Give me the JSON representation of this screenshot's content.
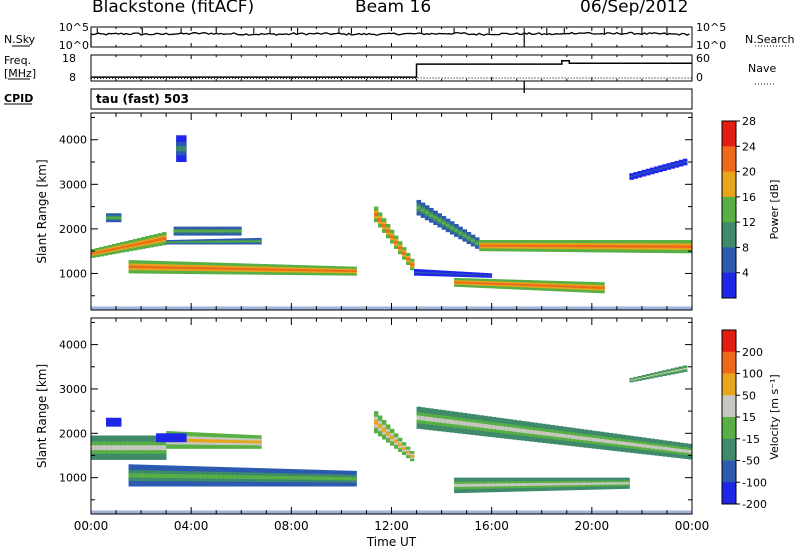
{
  "header": {
    "station": "Blackstone (fitACF)",
    "beam": "Beam 16",
    "date": "06/Sep/2012"
  },
  "chart_data": [
    {
      "type": "line",
      "panel": "noise",
      "left_label": "N.Sky",
      "right_label": "N.Search",
      "left_ticks": [
        "10^5",
        "10^0"
      ],
      "right_ticks": [
        "10^5",
        "10^0"
      ],
      "x": [
        0,
        1,
        2,
        3,
        4,
        5,
        6,
        7,
        8,
        9,
        10,
        11,
        12,
        13,
        14,
        15,
        16,
        17,
        18,
        19,
        20,
        21,
        22,
        23,
        24
      ],
      "series": [
        {
          "name": "N.Sky",
          "values": [
            3.2,
            3.3,
            3.2,
            3.3,
            3.4,
            3.3,
            3.2,
            3.2,
            3.3,
            3.3,
            3.2,
            3.2,
            3.3,
            3.3,
            3.4,
            3.2,
            3.3,
            3.3,
            3.2,
            3.5,
            3.3,
            3.4,
            3.3,
            3.2,
            3.3
          ]
        }
      ]
    },
    {
      "type": "line",
      "panel": "frequency",
      "left_label": "Freq. [MHz]",
      "right_label": "Nave",
      "left_ticks": [
        "18",
        "8"
      ],
      "right_ticks": [
        "60",
        "0"
      ],
      "x": [
        0,
        13,
        13,
        18.8,
        18.8,
        19.1,
        19.1,
        24
      ],
      "series": [
        {
          "name": "Freq.",
          "values": [
            9.5,
            9.5,
            14.5,
            14.5,
            15.8,
            15.8,
            14.8,
            14.8
          ]
        },
        {
          "name": "Nave",
          "values": [
            6,
            6,
            7,
            7,
            7,
            7,
            7,
            7
          ]
        }
      ]
    },
    {
      "type": "table",
      "panel": "cpid",
      "label": "CPID",
      "text": "tau (fast) 503"
    },
    {
      "type": "heatmap",
      "panel": "power",
      "ylabel": "Slant Range [km]",
      "xlim": [
        0,
        24
      ],
      "ylim": [
        180,
        4600
      ],
      "yticks": [
        1000,
        2000,
        3000,
        4000
      ],
      "colorbar": {
        "label": "Power [dB]",
        "ticks": [
          "4",
          "8",
          "12",
          "16",
          "20",
          "24",
          "28"
        ],
        "colors": [
          "#1e26e8",
          "#2b5ab0",
          "#3e8a6a",
          "#58b045",
          "#e8a51c",
          "#ee6a1a",
          "#e21e12"
        ]
      },
      "echo_bands": [
        {
          "t0": 0.0,
          "t1": 3.0,
          "r0": 1350,
          "r1": 1550,
          "r2": 1650,
          "r3": 1950,
          "level": 5
        },
        {
          "t0": 3.0,
          "t1": 6.8,
          "r0": 1650,
          "r1": 1750,
          "r2": 1650,
          "r3": 1800,
          "level": 3
        },
        {
          "t0": 3.3,
          "t1": 6.0,
          "r0": 1850,
          "r1": 2050,
          "r2": 1850,
          "r3": 2050,
          "level": 3
        },
        {
          "t0": 1.5,
          "t1": 10.6,
          "r0": 1000,
          "r1": 1300,
          "r2": 950,
          "r3": 1150,
          "level": 5
        },
        {
          "t0": 0.6,
          "t1": 1.2,
          "r0": 2150,
          "r1": 2350,
          "r2": 2150,
          "r3": 2350,
          "level": 3
        },
        {
          "t0": 3.4,
          "t1": 3.8,
          "r0": 3500,
          "r1": 4100,
          "r2": 3500,
          "r3": 4100,
          "level": 2
        },
        {
          "t0": 11.3,
          "t1": 12.9,
          "r0": 2150,
          "r1": 2500,
          "r2": 950,
          "r3": 1200,
          "level": 5
        },
        {
          "t0": 13.0,
          "t1": 15.5,
          "r0": 2300,
          "r1": 2650,
          "r2": 1500,
          "r3": 1750,
          "level": 3
        },
        {
          "t0": 15.5,
          "t1": 24.0,
          "r0": 1500,
          "r1": 1750,
          "r2": 1450,
          "r3": 1750,
          "level": 5
        },
        {
          "t0": 14.5,
          "t1": 20.5,
          "r0": 700,
          "r1": 900,
          "r2": 550,
          "r3": 800,
          "level": 5
        },
        {
          "t0": 12.9,
          "t1": 16.0,
          "r0": 950,
          "r1": 1100,
          "r2": 900,
          "r3": 1000,
          "level": 1
        },
        {
          "t0": 21.5,
          "t1": 23.8,
          "r0": 3100,
          "r1": 3250,
          "r2": 3450,
          "r3": 3600,
          "level": 1
        }
      ]
    },
    {
      "type": "heatmap",
      "panel": "velocity",
      "ylabel": "Slant Range [km]",
      "xlabel": "Time UT",
      "xlim": [
        0,
        24
      ],
      "xticks": [
        "00:00",
        "04:00",
        "08:00",
        "12:00",
        "16:00",
        "20:00",
        "00:00"
      ],
      "ylim": [
        180,
        4600
      ],
      "yticks": [
        1000,
        2000,
        3000,
        4000
      ],
      "colorbar": {
        "label": "Velocity [m s⁻¹]",
        "ticks": [
          "200",
          "100",
          "50",
          "15",
          "-15",
          "-50",
          "-100",
          "-200"
        ],
        "colors": [
          "#1e26e8",
          "#2b5ab0",
          "#3e8a6a",
          "#58b045",
          "#c8c8c0",
          "#e8a51c",
          "#ee6a1a",
          "#e21e12"
        ]
      },
      "echo_bands": [
        {
          "t0": 0.0,
          "t1": 3.0,
          "r0": 1400,
          "r1": 1950,
          "r2": 1400,
          "r3": 1950,
          "level": 4
        },
        {
          "t0": 3.0,
          "t1": 6.8,
          "r0": 1650,
          "r1": 2050,
          "r2": 1650,
          "r3": 1950,
          "level": 5
        },
        {
          "t0": 1.5,
          "t1": 10.6,
          "r0": 800,
          "r1": 1300,
          "r2": 800,
          "r3": 1150,
          "level": 3
        },
        {
          "t0": 0.6,
          "t1": 1.2,
          "r0": 2150,
          "r1": 2350,
          "r2": 2150,
          "r3": 2350,
          "level": 0
        },
        {
          "t0": 2.6,
          "t1": 3.8,
          "r0": 1800,
          "r1": 2000,
          "r2": 1800,
          "r3": 2000,
          "level": 0
        },
        {
          "t0": 11.3,
          "t1": 12.9,
          "r0": 2000,
          "r1": 2500,
          "r2": 1300,
          "r3": 1500,
          "level": 5
        },
        {
          "t0": 13.0,
          "t1": 24.0,
          "r0": 2100,
          "r1": 2600,
          "r2": 1400,
          "r3": 1750,
          "level": 4
        },
        {
          "t0": 14.5,
          "t1": 21.5,
          "r0": 650,
          "r1": 1000,
          "r2": 750,
          "r3": 1000,
          "level": 4
        },
        {
          "t0": 21.5,
          "t1": 23.8,
          "r0": 3150,
          "r1": 3250,
          "r2": 3400,
          "r3": 3550,
          "level": 4
        }
      ]
    }
  ]
}
